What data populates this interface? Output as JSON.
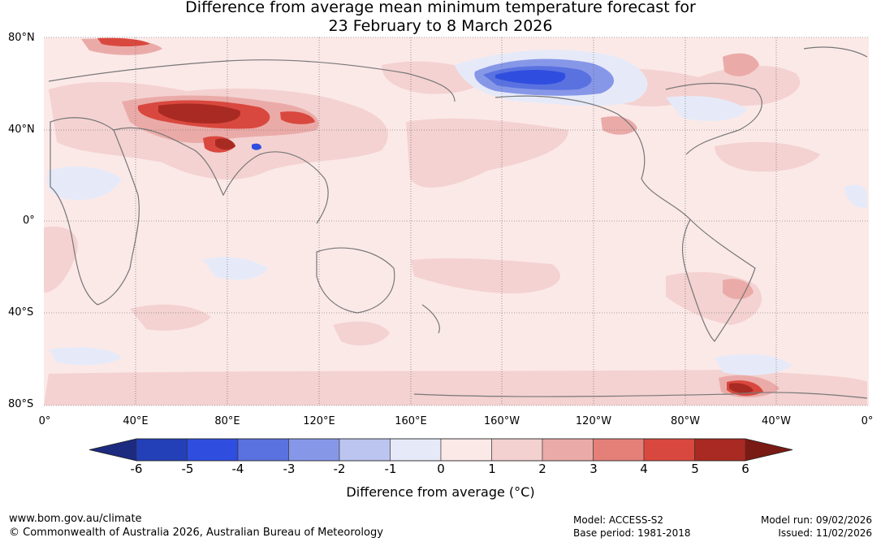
{
  "title": {
    "line1": "Difference from average mean minimum temperature forecast for",
    "line2": "23 February to 8 March 2026"
  },
  "map": {
    "lat_labels": [
      "80°N",
      "40°N",
      "0°",
      "40°S",
      "80°S"
    ],
    "lon_labels": [
      "0°",
      "40°E",
      "80°E",
      "120°E",
      "160°E",
      "160°W",
      "120°W",
      "80°W",
      "40°W",
      "0°"
    ],
    "ocean_color": "#fbe9e8",
    "land_outline_color": "#777777",
    "grid_color": "#555555"
  },
  "colorbar": {
    "ticks": [
      "-6",
      "-5",
      "-4",
      "-3",
      "-2",
      "-1",
      "0",
      "1",
      "2",
      "3",
      "4",
      "5",
      "6"
    ],
    "colors": [
      "#1c2a80",
      "#2440b8",
      "#2f4ee0",
      "#5a72e0",
      "#8797e8",
      "#bcc5f0",
      "#e6eaf8",
      "#fbe9e8",
      "#f3d1d0",
      "#eaaba8",
      "#e58079",
      "#d9483e",
      "#a92a22",
      "#7a1a14"
    ],
    "label": "Difference from average (°C)"
  },
  "footer": {
    "website": "www.bom.gov.au/climate",
    "copyright": "© Commonwealth of Australia 2026, Australian Bureau of Meteorology",
    "model": "Model: ACCESS-S2",
    "base_period": "Base period: 1981-2018",
    "model_run": "Model run: 09/02/2026",
    "issued": "Issued: 11/02/2026"
  }
}
